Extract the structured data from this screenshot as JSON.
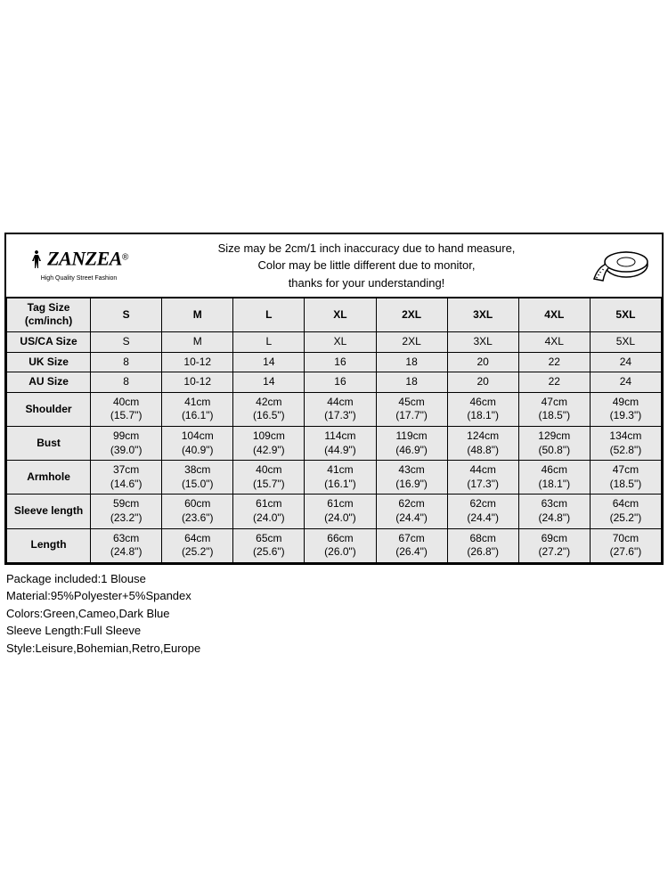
{
  "brand": {
    "name": "ZANZEA",
    "registered": "®",
    "tagline": "High Quality Street Fashion"
  },
  "notice": {
    "line1": "Size may be 2cm/1 inch inaccuracy due to hand measure,",
    "line2": "Color may be little different due to monitor,",
    "line3": "thanks for your understanding!"
  },
  "table": {
    "header_label": "Tag Size (cm/inch)",
    "sizes": [
      "S",
      "M",
      "L",
      "XL",
      "2XL",
      "3XL",
      "4XL",
      "5XL"
    ],
    "simple_rows": [
      {
        "label": "US/CA Size",
        "values": [
          "S",
          "M",
          "L",
          "XL",
          "2XL",
          "3XL",
          "4XL",
          "5XL"
        ]
      },
      {
        "label": "UK Size",
        "values": [
          "8",
          "10-12",
          "14",
          "16",
          "18",
          "20",
          "22",
          "24"
        ]
      },
      {
        "label": "AU Size",
        "values": [
          "8",
          "10-12",
          "14",
          "16",
          "18",
          "20",
          "22",
          "24"
        ]
      }
    ],
    "measurement_rows": [
      {
        "label": "Shoulder",
        "values": [
          {
            "cm": "40cm",
            "in": "(15.7\")"
          },
          {
            "cm": "41cm",
            "in": "(16.1\")"
          },
          {
            "cm": "42cm",
            "in": "(16.5\")"
          },
          {
            "cm": "44cm",
            "in": "(17.3\")"
          },
          {
            "cm": "45cm",
            "in": "(17.7\")"
          },
          {
            "cm": "46cm",
            "in": "(18.1\")"
          },
          {
            "cm": "47cm",
            "in": "(18.5\")"
          },
          {
            "cm": "49cm",
            "in": "(19.3\")"
          }
        ]
      },
      {
        "label": "Bust",
        "values": [
          {
            "cm": "99cm",
            "in": "(39.0\")"
          },
          {
            "cm": "104cm",
            "in": "(40.9\")"
          },
          {
            "cm": "109cm",
            "in": "(42.9\")"
          },
          {
            "cm": "114cm",
            "in": "(44.9\")"
          },
          {
            "cm": "119cm",
            "in": "(46.9\")"
          },
          {
            "cm": "124cm",
            "in": "(48.8\")"
          },
          {
            "cm": "129cm",
            "in": "(50.8\")"
          },
          {
            "cm": "134cm",
            "in": "(52.8\")"
          }
        ]
      },
      {
        "label": "Armhole",
        "values": [
          {
            "cm": "37cm",
            "in": "(14.6\")"
          },
          {
            "cm": "38cm",
            "in": "(15.0\")"
          },
          {
            "cm": "40cm",
            "in": "(15.7\")"
          },
          {
            "cm": "41cm",
            "in": "(16.1\")"
          },
          {
            "cm": "43cm",
            "in": "(16.9\")"
          },
          {
            "cm": "44cm",
            "in": "(17.3\")"
          },
          {
            "cm": "46cm",
            "in": "(18.1\")"
          },
          {
            "cm": "47cm",
            "in": "(18.5\")"
          }
        ]
      },
      {
        "label": "Sleeve length",
        "values": [
          {
            "cm": "59cm",
            "in": "(23.2\")"
          },
          {
            "cm": "60cm",
            "in": "(23.6\")"
          },
          {
            "cm": "61cm",
            "in": "(24.0\")"
          },
          {
            "cm": "61cm",
            "in": "(24.0\")"
          },
          {
            "cm": "62cm",
            "in": "(24.4\")"
          },
          {
            "cm": "62cm",
            "in": "(24.4\")"
          },
          {
            "cm": "63cm",
            "in": "(24.8\")"
          },
          {
            "cm": "64cm",
            "in": "(25.2\")"
          }
        ]
      },
      {
        "label": "Length",
        "values": [
          {
            "cm": "63cm",
            "in": "(24.8\")"
          },
          {
            "cm": "64cm",
            "in": "(25.2\")"
          },
          {
            "cm": "65cm",
            "in": "(25.6\")"
          },
          {
            "cm": "66cm",
            "in": "(26.0\")"
          },
          {
            "cm": "67cm",
            "in": "(26.4\")"
          },
          {
            "cm": "68cm",
            "in": "(26.8\")"
          },
          {
            "cm": "69cm",
            "in": "(27.2\")"
          },
          {
            "cm": "70cm",
            "in": "(27.6\")"
          }
        ]
      }
    ]
  },
  "details": {
    "package": "Package included:1 Blouse",
    "material": "Material:95%Polyester+5%Spandex",
    "colors": "Colors:Green,Cameo,Dark Blue",
    "sleeve": "Sleeve Length:Full Sleeve",
    "style": "Style:Leisure,Bohemian,Retro,Europe"
  },
  "colors": {
    "border": "#000000",
    "cell_bg": "#e8e8e8",
    "page_bg": "#ffffff",
    "text": "#000000"
  }
}
